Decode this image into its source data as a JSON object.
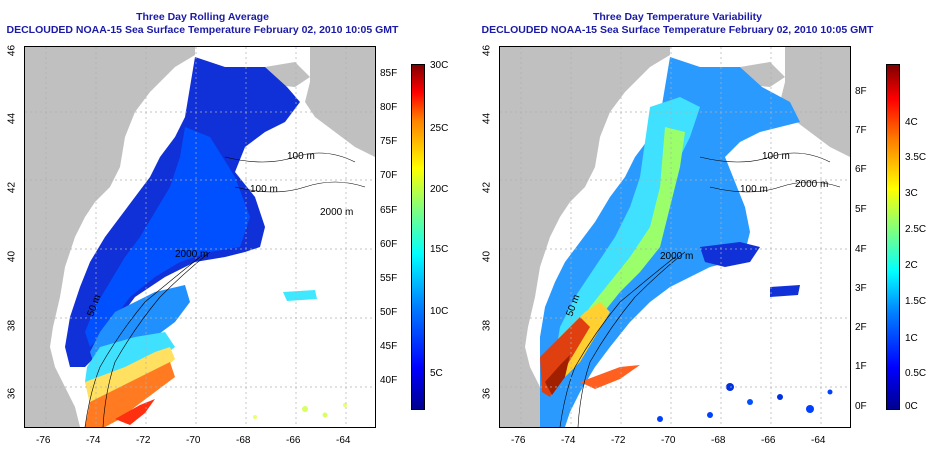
{
  "panels": [
    {
      "id": "rolling-average",
      "title_line1": "Three Day Rolling Average",
      "title_line2": "DECLOUDED NOAA-15 Sea Surface Temperature February 02, 2010 10:05 GMT",
      "colorbar_gradient": "linear-gradient(to top, #00008f 0%, #0000ff 12%, #0080ff 30%, #00ffff 45%, #7fff7f 58%, #ffff00 70%, #ff8000 84%, #ff0000 92%, #800000 100%)",
      "colorbar_left_labels": [
        "85F",
        "80F",
        "75F",
        "70F",
        "65F",
        "60F",
        "55F",
        "50F",
        "45F",
        "40F"
      ],
      "colorbar_right_labels": [
        "30C",
        "25C",
        "20C",
        "15C",
        "10C",
        "5C"
      ],
      "contour_labels": [
        "100 m",
        "2000 m",
        "100 m",
        "2000 m",
        "50 m"
      ]
    },
    {
      "id": "temperature-variability",
      "title_line1": "Three Day Temperature Variability",
      "title_line2": "DECLOUDED NOAA-15 Sea Surface Temperature February 02, 2010 10:05 GMT",
      "colorbar_gradient": "linear-gradient(to top, #00008f 0%, #0000ff 12%, #0080ff 28%, #00ffff 40%, #7fff7f 52%, #ffff00 64%, #ff8000 78%, #ff0000 90%, #800000 100%)",
      "colorbar_left_labels": [
        "8F",
        "7F",
        "6F",
        "5F",
        "4F",
        "3F",
        "2F",
        "1F",
        "0F"
      ],
      "colorbar_right_labels": [
        "4C",
        "3.5C",
        "3C",
        "2.5C",
        "2C",
        "1.5C",
        "1C",
        "0.5C",
        "0C"
      ],
      "contour_labels": [
        "100 m",
        "2000 m",
        "100 m",
        "2000 m",
        "50 m"
      ]
    }
  ],
  "axes": {
    "longitude_ticks": [
      "-76",
      "-74",
      "-72",
      "-70",
      "-68",
      "-66",
      "-64"
    ],
    "latitude_ticks": [
      "46",
      "44",
      "42",
      "40",
      "38",
      "36"
    ]
  },
  "colors": {
    "land": "#c0c0c0",
    "title": "#1a1aa6",
    "grid": "#b0b0b0"
  }
}
